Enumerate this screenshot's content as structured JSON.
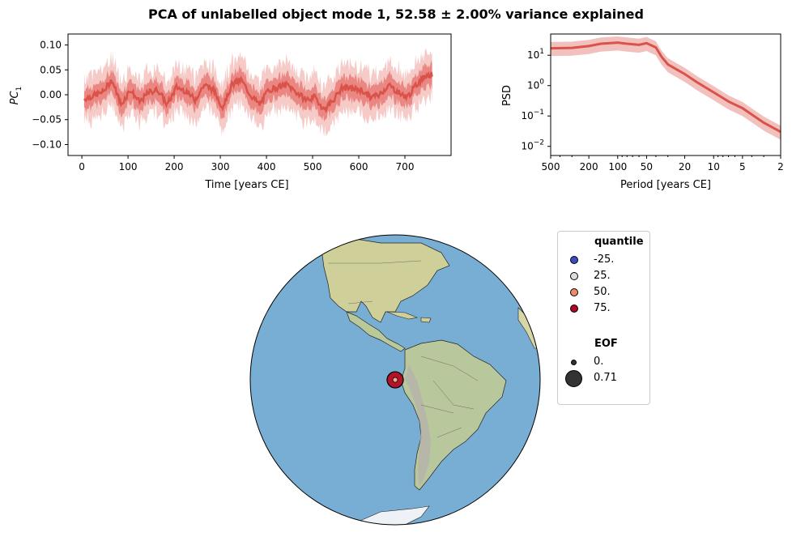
{
  "figure": {
    "title": "PCA of unlabelled object mode 1, 52.58 ± 2.00% variance explained"
  },
  "chart_data": [
    {
      "type": "line",
      "panel": "time-series",
      "xlabel": "Time [years CE]",
      "ylabel": "PC",
      "ylabel_subscript": "1",
      "xlim": [
        -30,
        800
      ],
      "ylim": [
        -0.122,
        0.122
      ],
      "xticks": [
        0,
        100,
        200,
        300,
        400,
        500,
        600,
        700
      ],
      "yticks": [
        -0.1,
        -0.05,
        0.0,
        0.05,
        0.1
      ],
      "ytick_labels": [
        "−0.10",
        "−0.05",
        "0.00",
        "0.05",
        "0.10"
      ],
      "x_range": [
        5,
        760
      ],
      "series": [
        {
          "role": "median",
          "color": "#d9534a",
          "values_sampled_every_20yr": [
            -0.008,
            -0.002,
            0.005,
            0.03,
            -0.02,
            0.01,
            -0.015,
            0.005,
            0.01,
            -0.02,
            0.015,
            0.008,
            -0.01,
            0.02,
            0.01,
            -0.025,
            0.02,
            0.03,
            0.0,
            -0.02,
            0.01,
            0.015,
            0.02,
            0.005,
            -0.01,
            -0.005,
            -0.03,
            -0.01,
            0.015,
            0.012,
            0.01,
            -0.005,
            0.0,
            0.02,
            0.005,
            -0.005,
            0.02,
            0.04
          ]
        }
      ],
      "band_inner_halfwidth": 0.025,
      "band_outer_halfwidth": 0.055,
      "band_inner_color": "#e97b75",
      "band_outer_color": "#f3c1bd"
    },
    {
      "type": "line",
      "panel": "spectrum",
      "xlabel": "Period [years CE]",
      "ylabel": "PSD",
      "x_scale": "log-reversed",
      "y_scale": "log",
      "xlim": [
        500,
        2
      ],
      "ylim": [
        0.005,
        50
      ],
      "xtick_labels": [
        "500",
        "200",
        "100",
        "50",
        "20",
        "10",
        "5",
        "2"
      ],
      "xtick_values": [
        500,
        200,
        100,
        50,
        20,
        10,
        5,
        2
      ],
      "ytick_exponents": [
        "−2",
        "−1",
        "0",
        "1"
      ],
      "ytick_values": [
        0.01,
        0.1,
        1,
        10
      ],
      "series": [
        {
          "role": "median",
          "color": "#d9534a",
          "period": [
            500,
            300,
            200,
            150,
            100,
            80,
            60,
            50,
            40,
            35,
            30,
            25,
            20,
            15,
            10,
            7,
            5,
            3,
            2
          ],
          "psd": [
            17,
            17.5,
            20,
            24,
            26,
            24,
            22,
            25,
            18,
            9,
            5,
            3.6,
            2.4,
            1.3,
            0.6,
            0.3,
            0.18,
            0.06,
            0.03
          ]
        }
      ],
      "band_factor_low": 0.55,
      "band_factor_high": 1.6,
      "band_color": "#f3c1bd"
    },
    {
      "type": "map",
      "panel": "globe",
      "site_marker": {
        "label": "EOF site",
        "fill": "#b3122a",
        "inner_fill": "#f4a582",
        "eof_value": 0.71
      },
      "ocean_color": "#78aed3",
      "land_color": "#d9d7a3",
      "legend": {
        "quantile_title": "quantile",
        "quantile_items": [
          {
            "label": "-25.",
            "color": "#3b4cc0"
          },
          {
            "label": "25.",
            "color": "#dddddd"
          },
          {
            "label": "50.",
            "color": "#f08b6a"
          },
          {
            "label": "75.",
            "color": "#b40426"
          }
        ],
        "eof_title": "EOF",
        "eof_items": [
          {
            "label": "0.",
            "size": "small"
          },
          {
            "label": "0.71",
            "size": "large"
          }
        ],
        "eof_marker_color": "#333333"
      }
    }
  ]
}
